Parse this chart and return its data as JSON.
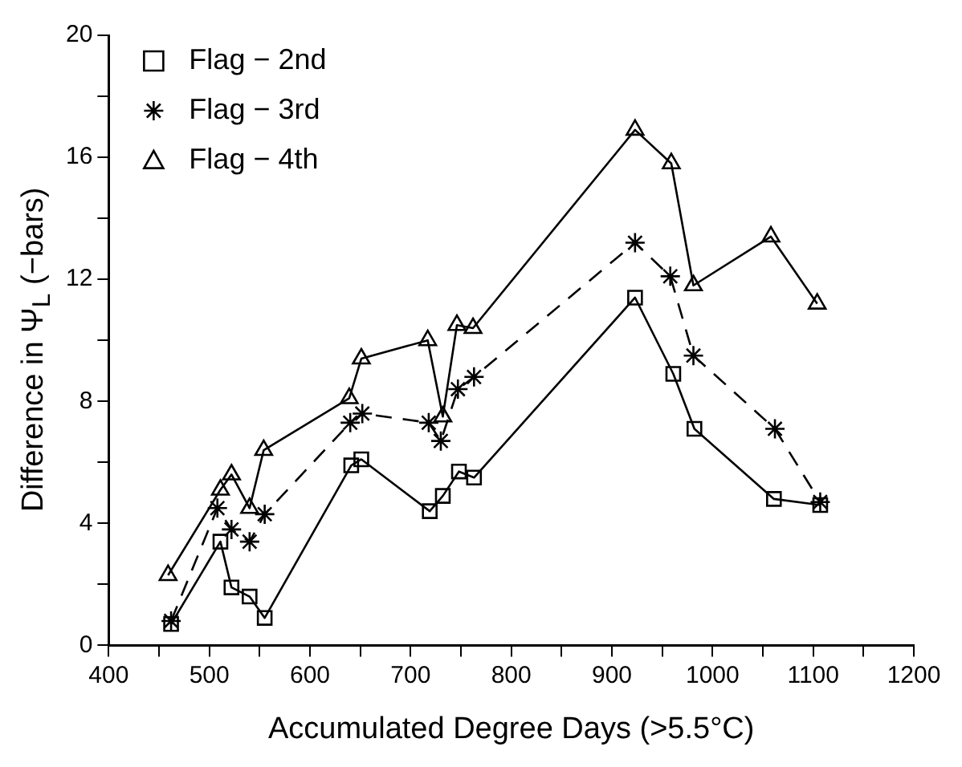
{
  "chart_data": {
    "type": "line",
    "xlabel": "Accumulated Degree Days (>5.5°C)",
    "ylabel": "Difference in Ψ$_{L}$ (−bars)",
    "xlim": [
      400,
      1200
    ],
    "xticks": [
      400,
      {
        "value": 450,
        "label": null
      },
      500,
      {
        "value": 550,
        "label": null
      },
      600,
      {
        "value": 650,
        "label": null
      },
      700,
      {
        "value": 750,
        "label": null
      },
      800,
      {
        "value": 850,
        "label": null
      },
      900,
      {
        "value": 950,
        "label": null
      },
      1000,
      {
        "value": 1050,
        "label": null
      },
      1100,
      {
        "value": 1150,
        "label": null
      },
      1200
    ],
    "ylim": [
      0,
      20
    ],
    "yticks": [
      0,
      {
        "value": 2,
        "label": null
      },
      4,
      {
        "value": 6,
        "label": null
      },
      8,
      {
        "value": 10,
        "label": null
      },
      12,
      {
        "value": 14,
        "label": null
      },
      16,
      {
        "value": 18,
        "label": null
      },
      20
    ],
    "grid": false,
    "legend": "top left",
    "series": [
      {
        "name": "Flag − 2nd",
        "color": "#000000",
        "marker": "square",
        "line_style": "solid",
        "x": [
          462,
          511,
          522,
          540,
          555,
          641,
          651,
          719,
          732,
          748,
          763,
          923,
          961,
          982,
          1061,
          1107
        ],
        "values": [
          0.7,
          3.4,
          1.9,
          1.6,
          0.9,
          5.9,
          6.1,
          4.4,
          4.9,
          5.7,
          5.5,
          11.4,
          8.9,
          7.1,
          4.8,
          4.6
        ]
      },
      {
        "name": "Flag − 3rd",
        "color": "#000000",
        "marker": "cross",
        "line_style": "dashed",
        "x": [
          462,
          508,
          522,
          540,
          555,
          640,
          652,
          718,
          730,
          747,
          763,
          923,
          958,
          981,
          1062,
          1107
        ],
        "values": [
          0.8,
          4.5,
          3.8,
          3.4,
          4.3,
          7.3,
          7.6,
          7.3,
          6.7,
          8.4,
          8.8,
          13.2,
          12.1,
          9.5,
          7.1,
          4.7
        ]
      },
      {
        "name": "Flag − 4th",
        "color": "#000000",
        "marker": "triangle",
        "line_style": "solid",
        "x": [
          459,
          511,
          522,
          540,
          554,
          639,
          651,
          717,
          732,
          746,
          762,
          923,
          959,
          981,
          1058,
          1104
        ],
        "values": [
          2.3,
          5.1,
          5.6,
          4.5,
          6.4,
          8.1,
          9.4,
          10.0,
          7.5,
          10.5,
          10.4,
          16.9,
          15.8,
          11.8,
          13.4,
          11.2
        ]
      }
    ]
  }
}
